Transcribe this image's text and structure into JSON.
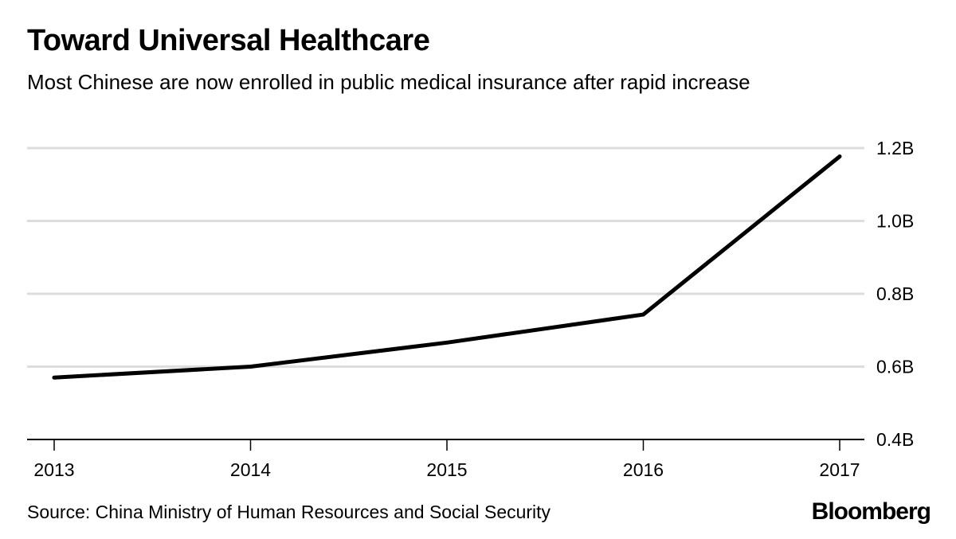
{
  "title": "Toward Universal Healthcare",
  "subtitle": "Most Chinese are now enrolled in public medical insurance after rapid increase",
  "source": "Source: China Ministry of Human Resources and Social Security",
  "logo": "Bloomberg",
  "chart_data": {
    "type": "line",
    "title": "Toward Universal Healthcare",
    "subtitle": "Most Chinese are now enrolled in public medical insurance after rapid increase",
    "x": [
      "2013",
      "2014",
      "2015",
      "2016",
      "2017"
    ],
    "series": [
      {
        "values": [
          0.57,
          0.6,
          0.666,
          0.743,
          1.177
        ],
        "color": "#000000"
      }
    ],
    "yticks": [
      0.4,
      0.6,
      0.8,
      1.0,
      1.2
    ],
    "ytick_labels": [
      "0.4B",
      "0.6B",
      "0.8B",
      "1.0B",
      "1.2B"
    ],
    "ylim": [
      0.4,
      1.2
    ],
    "y_axis_position": "right",
    "grid": true,
    "grid_color": "#dddddd",
    "xlabel": "",
    "ylabel": ""
  }
}
